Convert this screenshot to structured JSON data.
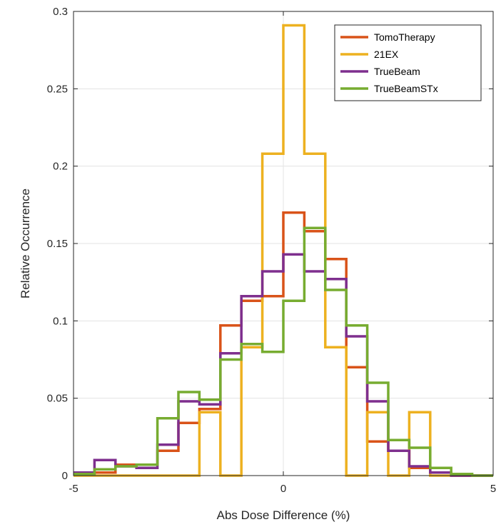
{
  "chart_data": {
    "type": "line",
    "subtype": "stairs-histogram",
    "xlabel": "Abs Dose Difference (%)",
    "ylabel": "Relative Occurrence",
    "xlim": [
      -5,
      5
    ],
    "ylim": [
      0,
      0.3
    ],
    "xticks": [
      "-5",
      "0",
      "5"
    ],
    "yticks": [
      "0",
      "0.05",
      "0.1",
      "0.15",
      "0.2",
      "0.25",
      "0.3"
    ],
    "grid": true,
    "legend_position": "top-right",
    "bin_edges": [
      -5,
      -4.5,
      -4,
      -3.5,
      -3,
      -2.5,
      -2,
      -1.5,
      -1,
      -0.5,
      0,
      0.5,
      1,
      1.5,
      2,
      2.5,
      3,
      3.5,
      4,
      4.5,
      5
    ],
    "series": [
      {
        "name": "TomoTherapy",
        "color": "#D95319",
        "values": [
          0.001,
          0.002,
          0.007,
          0.007,
          0.016,
          0.034,
          0.043,
          0.097,
          0.113,
          0.116,
          0.17,
          0.158,
          0.14,
          0.07,
          0.022,
          0.016,
          0.005,
          0.002,
          0.0,
          0.0
        ]
      },
      {
        "name": "21EX",
        "color": "#EDB120",
        "values": [
          0.0,
          0.0,
          0.0,
          0.0,
          0.0,
          0.0,
          0.041,
          0.0,
          0.083,
          0.208,
          0.291,
          0.208,
          0.083,
          0.0,
          0.041,
          0.0,
          0.041,
          0.0,
          0.0,
          0.0
        ]
      },
      {
        "name": "TrueBeam",
        "color": "#7E2F8E",
        "values": [
          0.002,
          0.01,
          0.006,
          0.005,
          0.02,
          0.048,
          0.046,
          0.079,
          0.116,
          0.132,
          0.143,
          0.132,
          0.127,
          0.09,
          0.048,
          0.016,
          0.006,
          0.002,
          0.0,
          0.0
        ]
      },
      {
        "name": "TrueBeamSTx",
        "color": "#77AC30",
        "values": [
          0.001,
          0.004,
          0.006,
          0.007,
          0.037,
          0.054,
          0.049,
          0.075,
          0.085,
          0.08,
          0.113,
          0.16,
          0.12,
          0.097,
          0.06,
          0.023,
          0.018,
          0.005,
          0.001,
          0.0
        ]
      }
    ]
  }
}
